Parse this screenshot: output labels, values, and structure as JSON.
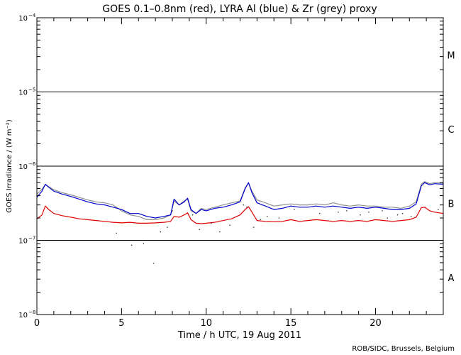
{
  "chart_data": {
    "type": "line",
    "title": "GOES 0.1–0.8nm (red), LYRA Al (blue) & Zr (grey) proxy",
    "xlabel": "Time / h UTC, 19 Aug 2011",
    "ylabel": "GOES Irradiance / (W m⁻²)",
    "xlim": [
      0,
      24
    ],
    "ylim": [
      1e-08,
      0.0001
    ],
    "y_scale": "log",
    "x_ticks": [
      0,
      5,
      10,
      15,
      20
    ],
    "x_tick_labels": [
      "0",
      "5",
      "10",
      "15",
      "20"
    ],
    "y_ticks": [
      {
        "value": 1e-08,
        "base": "10",
        "exp": "−8"
      },
      {
        "value": 1e-07,
        "base": "10",
        "exp": "−7"
      },
      {
        "value": 1e-06,
        "base": "10",
        "exp": "−6"
      },
      {
        "value": 1e-05,
        "base": "10",
        "exp": "−5"
      },
      {
        "value": 0.0001,
        "base": "10",
        "exp": "−4"
      }
    ],
    "flare_class_lines": [
      1e-07,
      1e-06,
      1e-05
    ],
    "flare_classes": [
      {
        "label": "A",
        "value": 3.16e-08
      },
      {
        "label": "B",
        "value": 3.16e-07
      },
      {
        "label": "C",
        "value": 3.16e-06
      },
      {
        "label": "M",
        "value": 3.16e-05
      }
    ],
    "credit": "ROB/SIDC, Brussels, Belgium",
    "series": [
      {
        "name": "GOES 0.1–0.8nm",
        "color": "#dd0000",
        "x": [
          0.0,
          0.3,
          0.5,
          0.7,
          1.0,
          1.5,
          2.0,
          2.5,
          3.0,
          3.5,
          4.0,
          4.5,
          5.0,
          5.5,
          6.0,
          6.5,
          7.0,
          7.5,
          7.9,
          8.1,
          8.4,
          8.7,
          8.9,
          9.1,
          9.4,
          9.7,
          10.0,
          10.5,
          11.0,
          11.5,
          12.0,
          12.3,
          12.5,
          12.7,
          13.0,
          13.5,
          14.0,
          14.5,
          15.0,
          15.5,
          16.0,
          16.5,
          17.0,
          17.5,
          18.0,
          18.5,
          19.0,
          19.5,
          20.0,
          20.5,
          21.0,
          21.5,
          22.0,
          22.4,
          22.7,
          22.9,
          23.2,
          23.5,
          24.0
        ],
        "values": [
          1.95e-07,
          2.2e-07,
          2.9e-07,
          2.6e-07,
          2.3e-07,
          2.15e-07,
          2.05e-07,
          1.95e-07,
          1.9e-07,
          1.85e-07,
          1.8e-07,
          1.75e-07,
          1.72e-07,
          1.75e-07,
          1.7e-07,
          1.7e-07,
          1.72e-07,
          1.75e-07,
          1.8e-07,
          2.1e-07,
          2.05e-07,
          2.2e-07,
          2.35e-07,
          1.9e-07,
          1.7e-07,
          1.68e-07,
          1.7e-07,
          1.75e-07,
          1.85e-07,
          1.95e-07,
          2.2e-07,
          2.6e-07,
          2.85e-07,
          2.4e-07,
          1.85e-07,
          1.8e-07,
          1.78e-07,
          1.8e-07,
          1.9e-07,
          1.8e-07,
          1.85e-07,
          1.9e-07,
          1.85e-07,
          1.8e-07,
          1.85e-07,
          1.8e-07,
          1.85e-07,
          1.8e-07,
          1.9e-07,
          1.85e-07,
          1.8e-07,
          1.85e-07,
          1.9e-07,
          2.05e-07,
          2.75e-07,
          2.8e-07,
          2.5e-07,
          2.4e-07,
          2.3e-07
        ]
      },
      {
        "name": "LYRA Al",
        "color": "#0000cc",
        "x": [
          0.0,
          0.3,
          0.5,
          0.7,
          1.0,
          1.5,
          2.0,
          2.5,
          3.0,
          3.5,
          4.0,
          4.5,
          5.0,
          5.5,
          6.0,
          6.5,
          7.0,
          7.5,
          7.9,
          8.1,
          8.4,
          8.7,
          8.9,
          9.1,
          9.4,
          9.7,
          10.0,
          10.5,
          11.0,
          11.5,
          12.0,
          12.3,
          12.5,
          12.7,
          13.0,
          13.5,
          14.0,
          14.5,
          15.0,
          15.5,
          16.0,
          16.5,
          17.0,
          17.5,
          18.0,
          18.5,
          19.0,
          19.5,
          20.0,
          20.5,
          21.0,
          21.5,
          22.0,
          22.4,
          22.7,
          22.9,
          23.2,
          23.5,
          24.0
        ],
        "values": [
          3.8e-07,
          4.6e-07,
          5.7e-07,
          5.2e-07,
          4.6e-07,
          4.2e-07,
          3.9e-07,
          3.6e-07,
          3.3e-07,
          3.1e-07,
          3e-07,
          2.8e-07,
          2.6e-07,
          2.3e-07,
          2.3e-07,
          2.1e-07,
          2e-07,
          2.1e-07,
          2.2e-07,
          3.6e-07,
          3e-07,
          3.3e-07,
          3.7e-07,
          2.6e-07,
          2.3e-07,
          2.6e-07,
          2.5e-07,
          2.7e-07,
          2.8e-07,
          3e-07,
          3.3e-07,
          5e-07,
          6e-07,
          4.4e-07,
          3.2e-07,
          2.9e-07,
          2.6e-07,
          2.7e-07,
          2.9e-07,
          2.8e-07,
          2.8e-07,
          2.9e-07,
          2.8e-07,
          2.9e-07,
          2.8e-07,
          2.7e-07,
          2.8e-07,
          2.7e-07,
          2.8e-07,
          2.7e-07,
          2.6e-07,
          2.6e-07,
          2.7e-07,
          3.1e-07,
          5.4e-07,
          6e-07,
          5.6e-07,
          5.8e-07,
          5.7e-07
        ]
      },
      {
        "name": "Zr",
        "color": "#909090",
        "x": [
          0.0,
          0.3,
          0.5,
          0.7,
          1.0,
          1.5,
          2.0,
          2.5,
          3.0,
          3.5,
          4.0,
          4.5,
          5.0,
          5.5,
          6.0,
          6.5,
          7.0,
          7.5,
          7.9,
          8.1,
          8.4,
          8.7,
          8.9,
          9.1,
          9.4,
          9.7,
          10.0,
          10.5,
          11.0,
          11.5,
          12.0,
          12.3,
          12.5,
          12.7,
          13.0,
          13.5,
          14.0,
          14.5,
          15.0,
          15.5,
          16.0,
          16.5,
          17.0,
          17.5,
          18.0,
          18.5,
          19.0,
          19.5,
          20.0,
          20.5,
          21.0,
          21.5,
          22.0,
          22.4,
          22.7,
          22.9,
          23.2,
          23.5,
          24.0
        ],
        "values": [
          4.2e-07,
          4.9e-07,
          5.6e-07,
          5.3e-07,
          4.8e-07,
          4.4e-07,
          4.1e-07,
          3.8e-07,
          3.5e-07,
          3.3e-07,
          3.2e-07,
          3e-07,
          2.5e-07,
          2.2e-07,
          2.1e-07,
          1.9e-07,
          1.9e-07,
          2e-07,
          2.2e-07,
          3.4e-07,
          3e-07,
          3.4e-07,
          3.6e-07,
          2.5e-07,
          2.3e-07,
          2.7e-07,
          2.6e-07,
          2.8e-07,
          3e-07,
          3.2e-07,
          3.4e-07,
          5.1e-07,
          5.9e-07,
          4.6e-07,
          3.5e-07,
          3.2e-07,
          2.9e-07,
          3e-07,
          3.1e-07,
          3e-07,
          3e-07,
          3.1e-07,
          3e-07,
          3.2e-07,
          3e-07,
          2.9e-07,
          3e-07,
          2.9e-07,
          2.9e-07,
          2.8e-07,
          2.8e-07,
          2.7e-07,
          2.9e-07,
          3.3e-07,
          5.7e-07,
          6.2e-07,
          5.8e-07,
          6e-07,
          5.9e-07
        ]
      }
    ],
    "scatter_points": {
      "color": "#333333",
      "x": [
        7.3,
        7.7,
        8.0,
        9.2,
        9.6,
        10.3,
        10.8,
        11.4,
        12.8,
        13.2,
        14.3,
        16.7,
        17.8,
        19.1,
        20.4,
        21.6,
        22.1,
        23.7,
        5.6,
        6.3,
        6.9,
        4.7,
        12.2,
        12.4,
        13.6,
        15.2,
        18.3,
        19.6,
        20.7,
        21.3
      ],
      "values": [
        1.3e-07,
        1.5e-07,
        2.5e-07,
        2.2e-07,
        1.4e-07,
        1.7e-07,
        1.3e-07,
        1.6e-07,
        1.5e-07,
        1.9e-07,
        2e-07,
        2.3e-07,
        2.4e-07,
        2.2e-07,
        2.5e-07,
        2.3e-07,
        2.1e-07,
        2.6e-07,
        8.6e-08,
        9e-08,
        4.9e-08,
        1.25e-07,
        3e-07,
        2.8e-07,
        2.1e-07,
        2.6e-07,
        2.5e-07,
        2.4e-07,
        2e-07,
        2.2e-07
      ]
    }
  }
}
